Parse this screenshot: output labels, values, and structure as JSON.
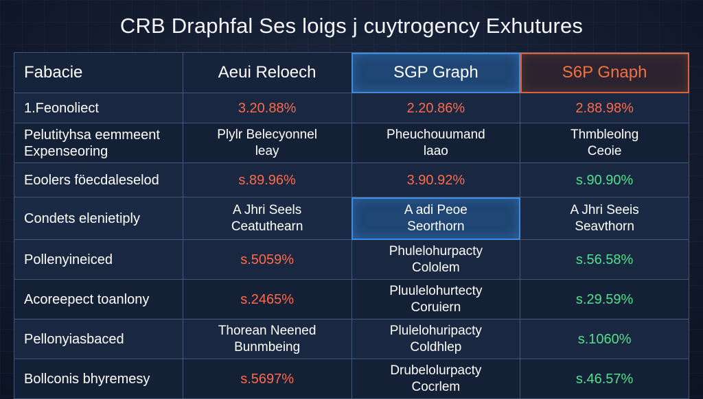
{
  "title": "CRB Draphfal Ses loigs j cuytrogency Exhutures",
  "colors": {
    "background": "#141d30",
    "border": "#45577a",
    "highlight_blue": "#3f8de0",
    "highlight_orange": "#e0623a",
    "value_red": "#ff6a48",
    "value_green": "#4fe08c"
  },
  "chart_data": {
    "type": "table",
    "columns": [
      "Fabacie",
      "Aeui Reloech",
      "SGP Graph",
      "S6P Gnaph"
    ],
    "rows": [
      {
        "label": "1.Feonoliect",
        "cells": [
          {
            "line1": "3.20.88%",
            "line2": "",
            "tone": "red"
          },
          {
            "line1": "2.20.86%",
            "line2": "",
            "tone": "red"
          },
          {
            "line1": "2.88.98%",
            "line2": "",
            "tone": "red"
          }
        ]
      },
      {
        "label": "Pelutityhsa eemmeent Expenseoring",
        "cells": [
          {
            "line1": "Plylr Belecyonnel",
            "line2": "leay",
            "tone": "white"
          },
          {
            "line1": "Pheuchouumand",
            "line2": "laao",
            "tone": "white"
          },
          {
            "line1": "Thmbleolng",
            "line2": "Ceoie",
            "tone": "white"
          }
        ]
      },
      {
        "label": "Eoolers föecdaleselod",
        "cells": [
          {
            "line1": "s.89.96%",
            "line2": "",
            "tone": "red"
          },
          {
            "line1": "3.90.92%",
            "line2": "",
            "tone": "red"
          },
          {
            "line1": "s.90.90%",
            "line2": "",
            "tone": "green"
          }
        ]
      },
      {
        "label": "Condets elenietiply",
        "cells": [
          {
            "line1": "A Jhri Seels",
            "line2": "Ceatuthearn",
            "tone": "white"
          },
          {
            "line1": "A adi Peoe",
            "line2": "Seorthorn",
            "tone": "white"
          },
          {
            "line1": "A Jhri Seeis",
            "line2": "Seavthorn",
            "tone": "white"
          }
        ]
      },
      {
        "label": "Pollenyineiced",
        "cells": [
          {
            "line1": "s.5059%",
            "line2": "",
            "tone": "red"
          },
          {
            "line1": "Phulelohurpacty",
            "line2": "Cololem",
            "tone": "white"
          },
          {
            "line1": "s.56.58%",
            "line2": "",
            "tone": "green"
          }
        ]
      },
      {
        "label": "Acoreepect toanlony",
        "cells": [
          {
            "line1": "s.2465%",
            "line2": "",
            "tone": "red"
          },
          {
            "line1": "Pluulelohurtecty",
            "line2": "Coruiern",
            "tone": "white"
          },
          {
            "line1": "s.29.59%",
            "line2": "",
            "tone": "green"
          }
        ]
      },
      {
        "label": "Pellonyiasbaced",
        "cells": [
          {
            "line1": "Thorean Neened",
            "line2": "Bunmbeing",
            "tone": "white"
          },
          {
            "line1": "Plulelohuripacty",
            "line2": "Coldhlep",
            "tone": "white"
          },
          {
            "line1": "s.1060%",
            "line2": "",
            "tone": "green"
          }
        ]
      },
      {
        "label": "Bollconis bhyremesy",
        "cells": [
          {
            "line1": "s.5697%",
            "line2": "",
            "tone": "red"
          },
          {
            "line1": "Drubelolurpacty",
            "line2": "Cocrlem",
            "tone": "white"
          },
          {
            "line1": "s.46.57%",
            "line2": "",
            "tone": "green"
          }
        ]
      }
    ]
  }
}
